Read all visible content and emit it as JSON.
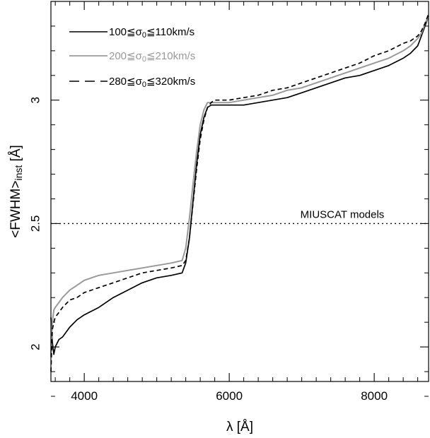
{
  "chart_data": {
    "type": "line",
    "xlabel": "λ [Å]",
    "ylabel": "<FWHM>inst [Å]",
    "ylabel_main": "<FWHM>",
    "ylabel_sub": "inst",
    "ylabel_unit": " [Å]",
    "xlim": [
      3540,
      8750
    ],
    "ylim": [
      1.86,
      3.4
    ],
    "x_ticks": [
      4000,
      6000,
      8000
    ],
    "y_ticks": [
      2,
      2.5,
      3
    ],
    "x_tick_labels": [
      "4000",
      "6000",
      "8000"
    ],
    "y_tick_labels": [
      "2",
      "2.5",
      "3"
    ],
    "grid": false,
    "legend_position": "top-left",
    "reference_line": {
      "y": 2.5,
      "label": "MIUSCAT models",
      "style": "dotted"
    },
    "series": [
      {
        "name": "100≦σ0≦110km/s",
        "name_pre": "100≦σ",
        "name_sub": "0",
        "name_post": "≦110km/s",
        "color": "#000000",
        "dash": "solid",
        "x": [
          3540,
          3560,
          3580,
          3600,
          3650,
          3700,
          3800,
          3900,
          4000,
          4200,
          4400,
          4600,
          4800,
          5000,
          5200,
          5350,
          5400,
          5450,
          5500,
          5550,
          5600,
          5650,
          5700,
          5750,
          5800,
          5900,
          6000,
          6200,
          6400,
          6600,
          6800,
          7000,
          7200,
          7400,
          7600,
          7800,
          8000,
          8200,
          8400,
          8500,
          8600,
          8650,
          8700,
          8750
        ],
        "y": [
          2.12,
          2.02,
          1.97,
          2.0,
          2.03,
          2.04,
          2.08,
          2.11,
          2.13,
          2.16,
          2.2,
          2.23,
          2.26,
          2.28,
          2.29,
          2.3,
          2.34,
          2.44,
          2.59,
          2.74,
          2.86,
          2.93,
          2.97,
          2.98,
          2.98,
          2.98,
          2.98,
          2.98,
          2.99,
          3.0,
          3.01,
          3.03,
          3.05,
          3.07,
          3.09,
          3.1,
          3.12,
          3.14,
          3.17,
          3.19,
          3.22,
          3.26,
          3.3,
          3.34
        ]
      },
      {
        "name": "200≦σ0≦210km/s",
        "name_pre": "200≦σ",
        "name_sub": "0",
        "name_post": "≦210km/s",
        "color": "#999999",
        "dash": "solid",
        "x": [
          3540,
          3560,
          3580,
          3600,
          3650,
          3700,
          3800,
          3900,
          4000,
          4200,
          4400,
          4600,
          4800,
          5000,
          5200,
          5350,
          5400,
          5450,
          5500,
          5550,
          5600,
          5650,
          5700,
          5750,
          5800,
          5900,
          6000,
          6200,
          6400,
          6600,
          6800,
          7000,
          7200,
          7400,
          7600,
          7800,
          8000,
          8200,
          8400,
          8500,
          8600,
          8650,
          8700,
          8750
        ],
        "y": [
          1.96,
          2.1,
          2.15,
          2.16,
          2.18,
          2.2,
          2.23,
          2.25,
          2.27,
          2.29,
          2.3,
          2.31,
          2.32,
          2.33,
          2.34,
          2.35,
          2.4,
          2.52,
          2.66,
          2.79,
          2.9,
          2.96,
          2.99,
          2.99,
          2.99,
          2.99,
          2.99,
          3.0,
          3.01,
          3.02,
          3.04,
          3.05,
          3.07,
          3.09,
          3.11,
          3.13,
          3.15,
          3.17,
          3.2,
          3.22,
          3.25,
          3.27,
          3.31,
          3.34
        ]
      },
      {
        "name": "280≦σ0≦320km/s",
        "name_pre": "280≦σ",
        "name_sub": "0",
        "name_post": "≦320km/s",
        "color": "#000000",
        "dash": "dashed",
        "x": [
          3540,
          3560,
          3580,
          3600,
          3650,
          3700,
          3800,
          3900,
          4000,
          4200,
          4400,
          4600,
          4800,
          5000,
          5200,
          5350,
          5400,
          5450,
          5500,
          5550,
          5600,
          5650,
          5700,
          5750,
          5800,
          5900,
          6000,
          6200,
          6400,
          6600,
          6800,
          7000,
          7200,
          7400,
          7600,
          7800,
          8000,
          8200,
          8400,
          8500,
          8600,
          8650,
          8700,
          8750
        ],
        "y": [
          1.9,
          2.07,
          2.1,
          2.12,
          2.14,
          2.16,
          2.19,
          2.2,
          2.22,
          2.24,
          2.26,
          2.28,
          2.3,
          2.31,
          2.32,
          2.33,
          2.35,
          2.44,
          2.58,
          2.72,
          2.84,
          2.92,
          2.97,
          2.99,
          3.0,
          3.0,
          3.0,
          3.01,
          3.02,
          3.04,
          3.05,
          3.07,
          3.09,
          3.11,
          3.13,
          3.15,
          3.18,
          3.2,
          3.23,
          3.24,
          3.26,
          3.28,
          3.31,
          3.35
        ]
      }
    ]
  }
}
